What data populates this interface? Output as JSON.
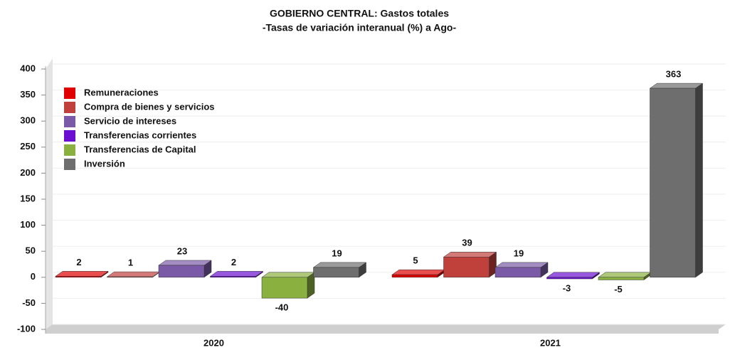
{
  "chart_data": {
    "type": "bar3d",
    "title": "GOBIERNO CENTRAL: Gastos totales",
    "subtitle": "-Tasas de variación interanual (%) a Ago-",
    "categories": [
      "2020",
      "2021"
    ],
    "series": [
      {
        "name": "Remuneraciones",
        "color": "#e00000",
        "values": [
          2,
          5
        ]
      },
      {
        "name": "Compra de bienes y servicios",
        "color": "#c0403c",
        "values": [
          1,
          39
        ]
      },
      {
        "name": "Servicio de intereses",
        "color": "#7a5aa6",
        "values": [
          23,
          19
        ]
      },
      {
        "name": "Transferencias corrientes",
        "color": "#6a0fd0",
        "values": [
          2,
          -3
        ]
      },
      {
        "name": "Transferencias de Capital",
        "color": "#8ab040",
        "values": [
          -40,
          -5
        ]
      },
      {
        "name": "Inversión",
        "color": "#6e6e6e",
        "values": [
          19,
          363
        ]
      }
    ],
    "ylim": [
      -100,
      400
    ],
    "yticks": [
      -100,
      -50,
      0,
      50,
      100,
      150,
      200,
      250,
      300,
      350,
      400
    ],
    "grid": true,
    "legend": "upper left"
  }
}
